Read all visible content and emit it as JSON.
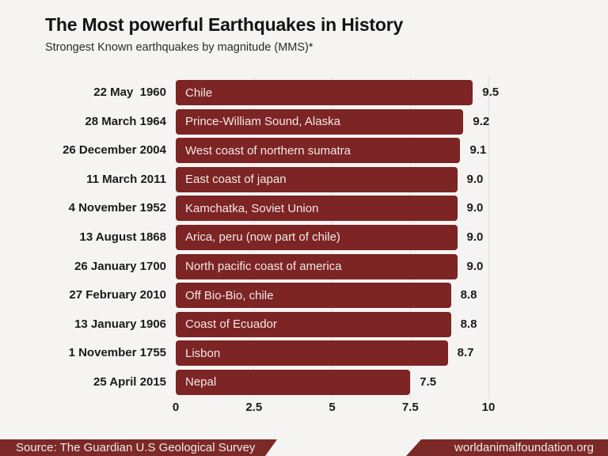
{
  "header": {
    "title": "The Most powerful Earthquakes in History",
    "subtitle": "Strongest Known earthquakes by magnitude (MMS)*"
  },
  "chart_data": {
    "type": "bar",
    "orientation": "horizontal",
    "title": "The Most powerful Earthquakes in History",
    "subtitle": "Strongest Known earthquakes by magnitude (MMS)*",
    "xlabel": "",
    "ylabel": "",
    "xlim": [
      0,
      10
    ],
    "x_ticks": [
      0,
      2.5,
      5,
      7.5,
      10
    ],
    "x_tick_labels": [
      "0",
      "2.5",
      "5",
      "7.5",
      "10"
    ],
    "grid": "vertical, light, behind bars",
    "legend": "none",
    "bar_color": "#7c2524",
    "rows": [
      {
        "date": "22 May  1960",
        "location": "Chile",
        "value": 9.5,
        "display": "9.5"
      },
      {
        "date": "28 March 1964",
        "location": "Prince-William Sound, Alaska",
        "value": 9.2,
        "display": "9.2"
      },
      {
        "date": "26 December 2004",
        "location": "West coast of northern sumatra",
        "value": 9.1,
        "display": "9.1"
      },
      {
        "date": "11 March 2011",
        "location": "East coast of japan",
        "value": 9.0,
        "display": "9.0"
      },
      {
        "date": "4 November 1952",
        "location": "Kamchatka, Soviet Union",
        "value": 9.0,
        "display": "9.0"
      },
      {
        "date": "13 August 1868",
        "location": "Arica, peru (now part of chile)",
        "value": 9.0,
        "display": "9.0"
      },
      {
        "date": "26 January 1700",
        "location": "North pacific coast of america",
        "value": 9.0,
        "display": "9.0"
      },
      {
        "date": "27 February 2010",
        "location": "Off Bio-Bio, chile",
        "value": 8.8,
        "display": "8.8"
      },
      {
        "date": "13 January 1906",
        "location": "Coast of Ecuador",
        "value": 8.8,
        "display": "8.8"
      },
      {
        "date": "1 November 1755",
        "location": "Lisbon",
        "value": 8.7,
        "display": "8.7"
      },
      {
        "date": "25 April 2015",
        "location": "Nepal",
        "value": 7.5,
        "display": "7.5"
      }
    ]
  },
  "footer": {
    "source": "Source: The Guardian U.S Geological Survey",
    "website": "worldanimalfoundation.org"
  },
  "colors": {
    "background": "#f6f4f3",
    "bar": "#7c2524",
    "banner": "#7c2a27",
    "gridline": "#e2dfde",
    "title_text": "#141414",
    "bar_text": "#f2e7e5",
    "banner_text": "#f1e9e7"
  }
}
